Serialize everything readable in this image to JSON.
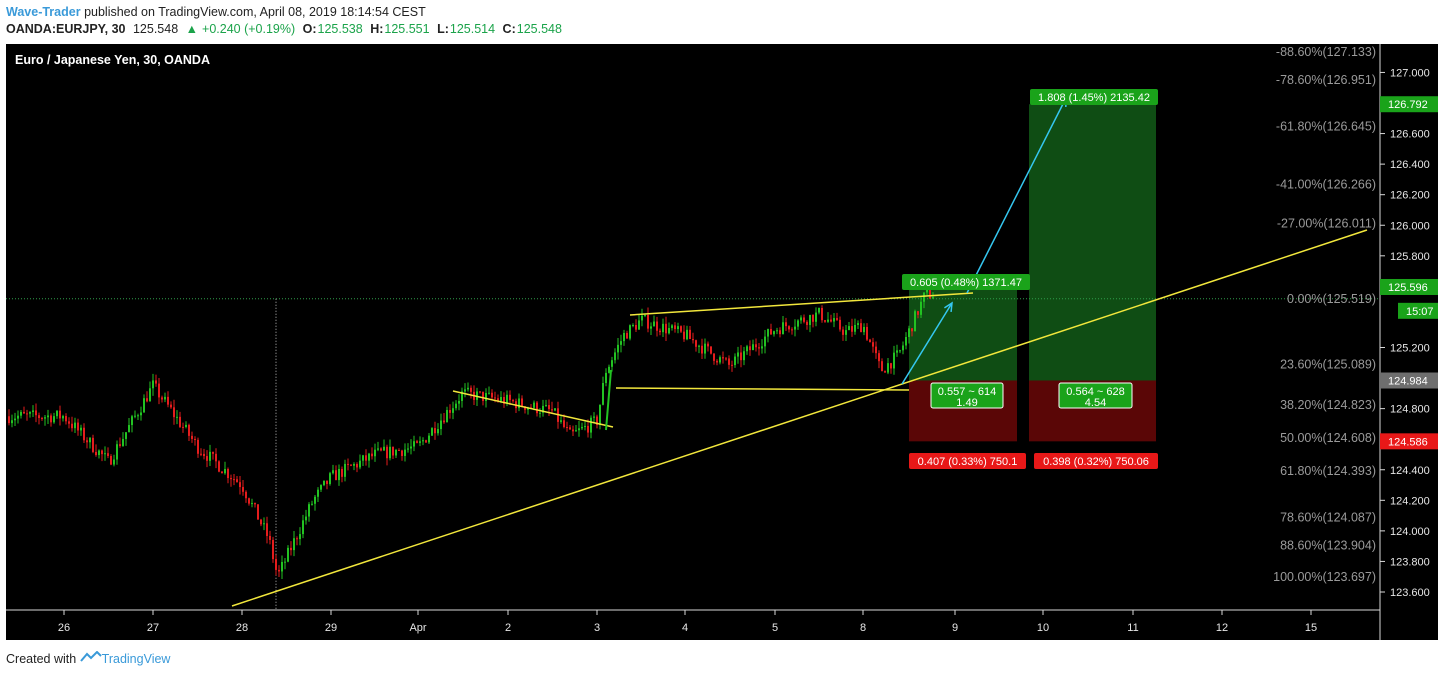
{
  "header": {
    "author": "Wave-Trader",
    "published_text": "published on TradingView.com, April 08, 2019 18:14:54 CEST",
    "symbol": "OANDA:EURJPY, 30",
    "last": "125.548",
    "change": "+0.240 (+0.19%)",
    "open_label": "O:",
    "open": "125.538",
    "high_label": "H:",
    "high": "125.551",
    "low_label": "L:",
    "low": "125.514",
    "close_label": "C:",
    "close": "125.548"
  },
  "footer": {
    "created_with": "Created with",
    "brand": "TradingView"
  },
  "chart_data": {
    "type": "candlestick",
    "title": "Euro / Japanese Yen, 30, OANDA",
    "colors": {
      "background": "#000000",
      "up": "#22c322",
      "down": "#e51d1d",
      "trendline": "#f2e73c",
      "arrow": "#35c7f0",
      "profit_zone": "#0f4d14",
      "loss_zone": "#5a0606"
    },
    "x_ticks": [
      "26",
      "27",
      "28",
      "29",
      "Apr",
      "2",
      "3",
      "4",
      "5",
      "8",
      "9",
      "10",
      "11",
      "12",
      "15"
    ],
    "y_ticks": [
      "127.000",
      "126.800",
      "126.600",
      "126.400",
      "126.200",
      "126.000",
      "125.800",
      "125.600",
      "125.200",
      "124.800",
      "124.400",
      "124.200",
      "124.000",
      "123.800",
      "123.600"
    ],
    "ylim": [
      123.58,
      127.2
    ],
    "price_path": [
      [
        "26",
        124.75
      ],
      [
        "26.5",
        124.45
      ],
      [
        "27",
        124.95
      ],
      [
        "27.5",
        124.55
      ],
      [
        "28",
        124.3
      ],
      [
        "28.3",
        123.95
      ],
      [
        "28.4",
        123.7
      ],
      [
        "28.8",
        124.2
      ],
      [
        "29",
        124.35
      ],
      [
        "29.5",
        124.5
      ],
      [
        "Apr",
        124.55
      ],
      [
        "Apr.5",
        124.9
      ],
      [
        "2",
        124.85
      ],
      [
        "2.5",
        124.78
      ],
      [
        "2.7",
        124.62
      ],
      [
        "3",
        124.72
      ],
      [
        "3.1",
        125.05
      ],
      [
        "3.3",
        125.28
      ],
      [
        "3.5",
        125.38
      ],
      [
        "4",
        125.28
      ],
      [
        "4.5",
        125.08
      ],
      [
        "5",
        125.32
      ],
      [
        "5.5",
        125.42
      ],
      [
        "5.8",
        125.3
      ],
      [
        "8",
        125.35
      ],
      [
        "8.2",
        125.05
      ],
      [
        "8.4",
        125.15
      ],
      [
        "8.7",
        125.548
      ]
    ],
    "fib_levels": [
      {
        "label": "-88.60%(127.133)",
        "price": 127.133
      },
      {
        "label": "-78.60%(126.951)",
        "price": 126.951
      },
      {
        "label": "-61.80%(126.645)",
        "price": 126.645
      },
      {
        "label": "-41.00%(126.266)",
        "price": 126.266
      },
      {
        "label": "-27.00%(126.011)",
        "price": 126.011
      },
      {
        "label": "0.00%(125.519)",
        "price": 125.519
      },
      {
        "label": "23.60%(125.089)",
        "price": 125.089
      },
      {
        "label": "38.20%(124.823)",
        "price": 124.823
      },
      {
        "label": "50.00%(124.608)",
        "price": 124.608
      },
      {
        "label": "61.80%(124.393)",
        "price": 124.393
      },
      {
        "label": "78.60%(124.087)",
        "price": 124.087
      },
      {
        "label": "88.60%(123.904)",
        "price": 123.904
      },
      {
        "label": "100.00%(123.697)",
        "price": 123.697
      }
    ],
    "price_tags": [
      {
        "text": "126.792",
        "price": 126.792,
        "color": "#1aa31a"
      },
      {
        "text": "125.596",
        "price": 125.596,
        "color": "#1aa31a"
      },
      {
        "text": "15:07",
        "price": 125.44,
        "color": "#1aa31a"
      },
      {
        "text": "124.984",
        "price": 124.984,
        "color": "#6e6e6e"
      },
      {
        "text": "124.586",
        "price": 124.586,
        "color": "#e81818"
      }
    ],
    "positions": [
      {
        "target": "0.605 (0.48%) 1371.47",
        "stop": "0.407 (0.33%) 750.1",
        "mid1": "0.557 ~ 614",
        "mid2": "1.49"
      },
      {
        "target": "1.808 (1.45%) 2135.42",
        "stop": "0.398 (0.32%) 750.06",
        "mid1": "0.564 ~ 628",
        "mid2": "4.54"
      }
    ]
  }
}
